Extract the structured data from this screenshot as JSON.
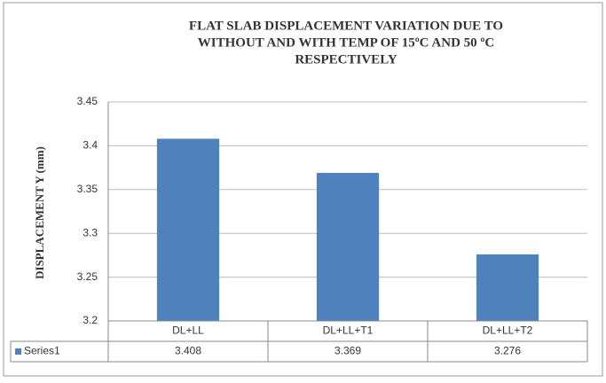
{
  "chart_data": {
    "type": "bar",
    "title": [
      "FLAT SLAB DISPLACEMENT VARIATION DUE TO",
      "WITHOUT AND WITH TEMP OF 15ºC AND 50 ºC",
      "RESPECTIVELY"
    ],
    "y_label": "DISPLACEMENT Y (mm)",
    "categories": [
      "DL+LL",
      "DL+LL+T1",
      "DL+LL+T2"
    ],
    "series": [
      {
        "name": "Series1",
        "color": "#4f81bd",
        "values": [
          3.408,
          3.369,
          3.276
        ]
      }
    ],
    "ylim": [
      3.2,
      3.45
    ],
    "yticks": [
      3.2,
      3.25,
      3.3,
      3.35,
      3.4,
      3.45
    ],
    "grid": true,
    "data_table": true
  }
}
